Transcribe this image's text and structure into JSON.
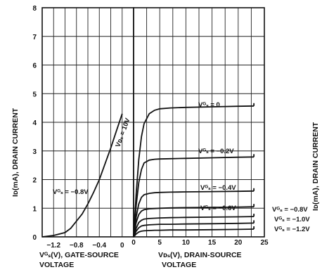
{
  "chart_data": [
    {
      "type": "line",
      "panel": "transfer",
      "title": "",
      "xlabel_lines": [
        "Vᴳₛ(V), GATE-SOURCE",
        "VOLTAGE"
      ],
      "ylabel": "Iᴅ(mA), DRAIN CURRENT",
      "xlim": [
        -1.4,
        0.2
      ],
      "ylim": [
        0,
        8
      ],
      "x_ticks": [
        "−1.2",
        "−0.8",
        "−0.4",
        "0"
      ],
      "x_tick_values": [
        -1.2,
        -0.8,
        -0.4,
        0
      ],
      "y_ticks": [
        "0",
        "1",
        "2",
        "3",
        "4",
        "5",
        "6",
        "7",
        "8"
      ],
      "grid": true,
      "annotations": [
        "Vᴅₛ = 10V",
        "Vᴳₛ = −0.8V"
      ],
      "series": [
        {
          "x": [
            -1.4,
            -1.2,
            -1.0,
            -0.9,
            -0.8,
            -0.7,
            -0.6,
            -0.5,
            -0.4,
            -0.3,
            -0.2,
            -0.1,
            0.0
          ],
          "y": [
            0.0,
            0.05,
            0.15,
            0.3,
            0.55,
            0.8,
            1.15,
            1.55,
            2.0,
            2.55,
            3.1,
            3.7,
            4.3
          ]
        }
      ]
    },
    {
      "type": "line",
      "panel": "output",
      "title": "",
      "xlabel_lines": [
        "Vᴅₛ(V), DRAIN-SOURCE",
        "VOLTAGE"
      ],
      "xlim": [
        0,
        25
      ],
      "ylim": [
        0,
        8
      ],
      "x_ticks": [
        "0",
        "5",
        "10",
        "15",
        "20",
        "25"
      ],
      "grid": true,
      "series": [
        {
          "name": "Vᴳₛ = 0",
          "x": [
            0,
            0.5,
            1,
            1.5,
            2,
            3,
            4,
            5,
            7,
            10,
            15,
            20,
            23
          ],
          "y": [
            0,
            1.5,
            2.7,
            3.5,
            3.95,
            4.3,
            4.42,
            4.47,
            4.5,
            4.52,
            4.54,
            4.56,
            4.57
          ]
        },
        {
          "name": "Vᴳₛ = −0.2V",
          "x": [
            0,
            0.5,
            1,
            1.5,
            2,
            3,
            4,
            5,
            7,
            10,
            15,
            20,
            23
          ],
          "y": [
            0,
            1.1,
            1.9,
            2.35,
            2.58,
            2.68,
            2.71,
            2.72,
            2.73,
            2.74,
            2.76,
            2.78,
            2.79
          ]
        },
        {
          "name": "Vᴳₛ = −0.4V",
          "x": [
            0,
            0.5,
            1,
            1.5,
            2,
            3,
            4,
            5,
            7,
            10,
            15,
            20,
            23
          ],
          "y": [
            0,
            0.7,
            1.15,
            1.38,
            1.47,
            1.52,
            1.54,
            1.55,
            1.56,
            1.57,
            1.58,
            1.59,
            1.6
          ]
        },
        {
          "name": "Vᴳₛ = −0.6V",
          "x": [
            0,
            0.5,
            1,
            1.5,
            2,
            3,
            4,
            5,
            7,
            10,
            15,
            20,
            23
          ],
          "y": [
            0,
            0.5,
            0.78,
            0.9,
            0.95,
            0.98,
            0.99,
            1.0,
            1.01,
            1.02,
            1.03,
            1.04,
            1.05
          ]
        },
        {
          "name": "Vᴳₛ = −0.8V",
          "x": [
            0,
            0.5,
            1,
            1.5,
            2,
            3,
            4,
            5,
            7,
            10,
            15,
            20,
            23
          ],
          "y": [
            0,
            0.3,
            0.5,
            0.58,
            0.62,
            0.64,
            0.65,
            0.66,
            0.67,
            0.68,
            0.69,
            0.7,
            0.71
          ]
        },
        {
          "name": "Vᴳₛ = −1.0V",
          "x": [
            0,
            0.5,
            1,
            1.5,
            2,
            3,
            4,
            5,
            7,
            10,
            15,
            20,
            23
          ],
          "y": [
            0,
            0.2,
            0.32,
            0.38,
            0.4,
            0.42,
            0.43,
            0.44,
            0.44,
            0.45,
            0.46,
            0.47,
            0.48
          ]
        },
        {
          "name": "Vᴳₛ = −1.2V",
          "x": [
            0,
            0.5,
            1,
            1.5,
            2,
            3,
            4,
            5,
            7,
            10,
            15,
            20,
            23
          ],
          "y": [
            0,
            0.1,
            0.17,
            0.2,
            0.21,
            0.22,
            0.23,
            0.23,
            0.24,
            0.24,
            0.25,
            0.26,
            0.27
          ]
        }
      ]
    }
  ],
  "right_edge_label": "Iᴅ(mA), DRAIN CURRENT"
}
